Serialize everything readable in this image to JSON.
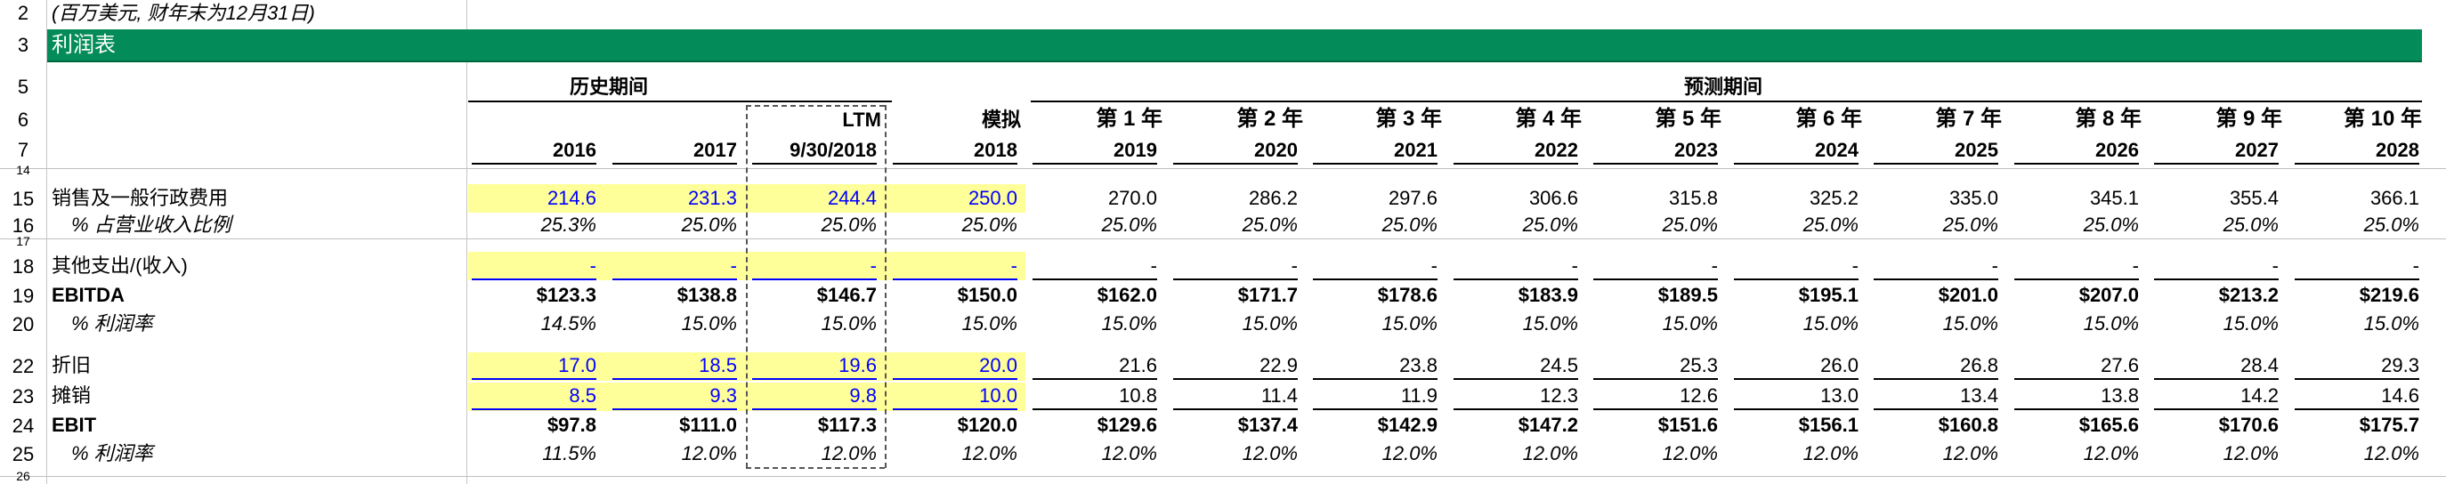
{
  "subtitle": "(百万美元, 财年末为12月31日)",
  "section_title": "利润表",
  "row_numbers": [
    "2",
    "3",
    "5",
    "6",
    "7",
    "14",
    "15",
    "16",
    "17",
    "18",
    "19",
    "20",
    "22",
    "23",
    "24",
    "25",
    "26"
  ],
  "header": {
    "historical_label": "历史期间",
    "forecast_label": "预测期间",
    "ltm_label": "LTM",
    "proforma_label": "模拟",
    "year_labels": [
      "第 1 年",
      "第 2 年",
      "第 3 年",
      "第 4 年",
      "第 5 年",
      "第 6 年",
      "第 7 年",
      "第 8 年",
      "第 9 年",
      "第 10 年"
    ],
    "columns": [
      "2016",
      "2017",
      "9/30/2018",
      "2018",
      "2019",
      "2020",
      "2021",
      "2022",
      "2023",
      "2024",
      "2025",
      "2026",
      "2027",
      "2028"
    ]
  },
  "rows": {
    "sga": {
      "label": "销售及一般行政费用",
      "values": [
        "214.6",
        "231.3",
        "244.4",
        "250.0",
        "270.0",
        "286.2",
        "297.6",
        "306.6",
        "315.8",
        "325.2",
        "335.0",
        "345.1",
        "355.4",
        "366.1"
      ]
    },
    "sga_pct": {
      "label": "% 占营业收入比例",
      "values": [
        "25.3%",
        "25.0%",
        "25.0%",
        "25.0%",
        "25.0%",
        "25.0%",
        "25.0%",
        "25.0%",
        "25.0%",
        "25.0%",
        "25.0%",
        "25.0%",
        "25.0%",
        "25.0%"
      ]
    },
    "other": {
      "label": "其他支出/(收入)",
      "values": [
        "-",
        "-",
        "-",
        "-",
        "-",
        "-",
        "-",
        "-",
        "-",
        "-",
        "-",
        "-",
        "-",
        "-"
      ]
    },
    "ebitda": {
      "label": "EBITDA",
      "values": [
        "$123.3",
        "$138.8",
        "$146.7",
        "$150.0",
        "$162.0",
        "$171.7",
        "$178.6",
        "$183.9",
        "$189.5",
        "$195.1",
        "$201.0",
        "$207.0",
        "$213.2",
        "$219.6"
      ]
    },
    "ebitda_margin": {
      "label": "% 利润率",
      "values": [
        "14.5%",
        "15.0%",
        "15.0%",
        "15.0%",
        "15.0%",
        "15.0%",
        "15.0%",
        "15.0%",
        "15.0%",
        "15.0%",
        "15.0%",
        "15.0%",
        "15.0%",
        "15.0%"
      ]
    },
    "depreciation": {
      "label": "折旧",
      "values": [
        "17.0",
        "18.5",
        "19.6",
        "20.0",
        "21.6",
        "22.9",
        "23.8",
        "24.5",
        "25.3",
        "26.0",
        "26.8",
        "27.6",
        "28.4",
        "29.3"
      ]
    },
    "amortization": {
      "label": "摊销",
      "values": [
        "8.5",
        "9.3",
        "9.8",
        "10.0",
        "10.8",
        "11.4",
        "11.9",
        "12.3",
        "12.6",
        "13.0",
        "13.4",
        "13.8",
        "14.2",
        "14.6"
      ]
    },
    "ebit": {
      "label": "EBIT",
      "values": [
        "$97.8",
        "$111.0",
        "$117.3",
        "$120.0",
        "$129.6",
        "$137.4",
        "$142.9",
        "$147.2",
        "$151.6",
        "$156.1",
        "$160.8",
        "$165.6",
        "$170.6",
        "$175.7"
      ]
    },
    "ebit_margin": {
      "label": "% 利润率",
      "values": [
        "11.5%",
        "12.0%",
        "12.0%",
        "12.0%",
        "12.0%",
        "12.0%",
        "12.0%",
        "12.0%",
        "12.0%",
        "12.0%",
        "12.0%",
        "12.0%",
        "12.0%",
        "12.0%"
      ]
    }
  },
  "colors": {
    "section_green": "#038c5a",
    "input_yellow": "#ffff99",
    "input_blue": "#0000ff"
  }
}
